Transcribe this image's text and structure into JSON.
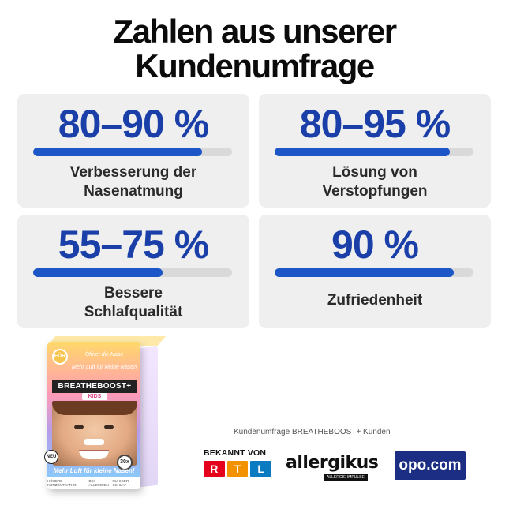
{
  "headline": {
    "line1": "Zahlen aus unserer",
    "line2": "Kundenumfrage"
  },
  "stats": [
    {
      "value": "80–90 %",
      "label_line1": "Verbesserung der",
      "label_line2": "Nasenatmung",
      "progress": 0.85
    },
    {
      "value": "80–95 %",
      "label_line1": "Lösung von",
      "label_line2": "Verstopfungen",
      "progress": 0.88
    },
    {
      "value": "55–75 %",
      "label_line1": "Bessere",
      "label_line2": "Schlafqualität",
      "progress": 0.65
    },
    {
      "value": "90 %",
      "label_line1": "Zufriedenheit",
      "label_line2": "",
      "progress": 0.9
    }
  ],
  "product": {
    "seal": "FÜR",
    "note1": "Öffnet die Nase",
    "note2": "Mehr Luft für kleine Nasen",
    "brand": "BREATHEBOOST+",
    "kids": "KIDS",
    "count": "30x",
    "neu": "NEU",
    "slogan": "Mehr Luft für kleine Nasen!",
    "features": [
      "HÖHERE KONZENTRATION",
      "BEI ALLERGIEN",
      "RUHIGER SCHLAF"
    ]
  },
  "caption": "Kundenumfrage BREATHEBOOST+ Kunden",
  "logos": {
    "bekannt_von": "BEKANNT VON",
    "rtl": [
      "R",
      "T",
      "L"
    ],
    "allergikus": "allergikus",
    "allergikus_tag": "ALLERGIE IMPULSE",
    "opo": "opo.com"
  },
  "colors": {
    "accent_blue": "#1a3fa8",
    "bar_fill": "#1d56c6",
    "bar_track": "#d9d9d9",
    "card_bg": "#efefef"
  }
}
